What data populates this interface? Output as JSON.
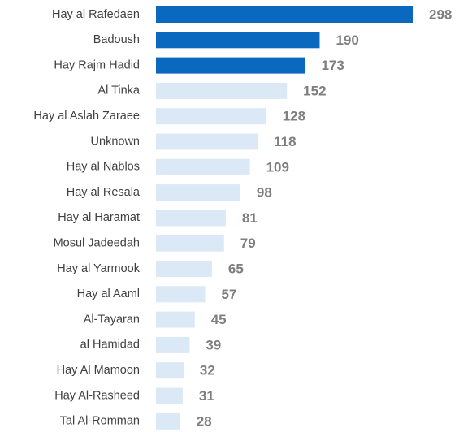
{
  "chart_data": {
    "type": "bar",
    "categories": [
      "Hay al Rafedaen",
      "Badoush",
      "Hay Rajm Hadid",
      "Al Tinka",
      "Hay al Aslah Zaraee",
      "Unknown",
      "Hay al Nablos",
      "Hay al Resala",
      "Hay al Haramat",
      "Mosul Jadeedah",
      "Hay al Yarmook",
      "Hay al Aaml",
      "Al-Tayaran",
      "al Hamidad",
      "Hay Al Mamoon",
      "Hay Al-Rasheed",
      "Tal Al-Romman"
    ],
    "values": [
      298,
      190,
      173,
      152,
      128,
      118,
      109,
      98,
      81,
      79,
      65,
      57,
      45,
      39,
      32,
      31,
      28
    ],
    "colors": [
      "#0b68bf",
      "#0b68bf",
      "#0b68bf",
      "#dbe8f6",
      "#dbe8f6",
      "#dbe8f6",
      "#dbe8f6",
      "#dbe8f6",
      "#dbe8f6",
      "#dbe8f6",
      "#dbe8f6",
      "#dbe8f6",
      "#dbe8f6",
      "#dbe8f6",
      "#dbe8f6",
      "#dbe8f6",
      "#dbe8f6"
    ]
  }
}
